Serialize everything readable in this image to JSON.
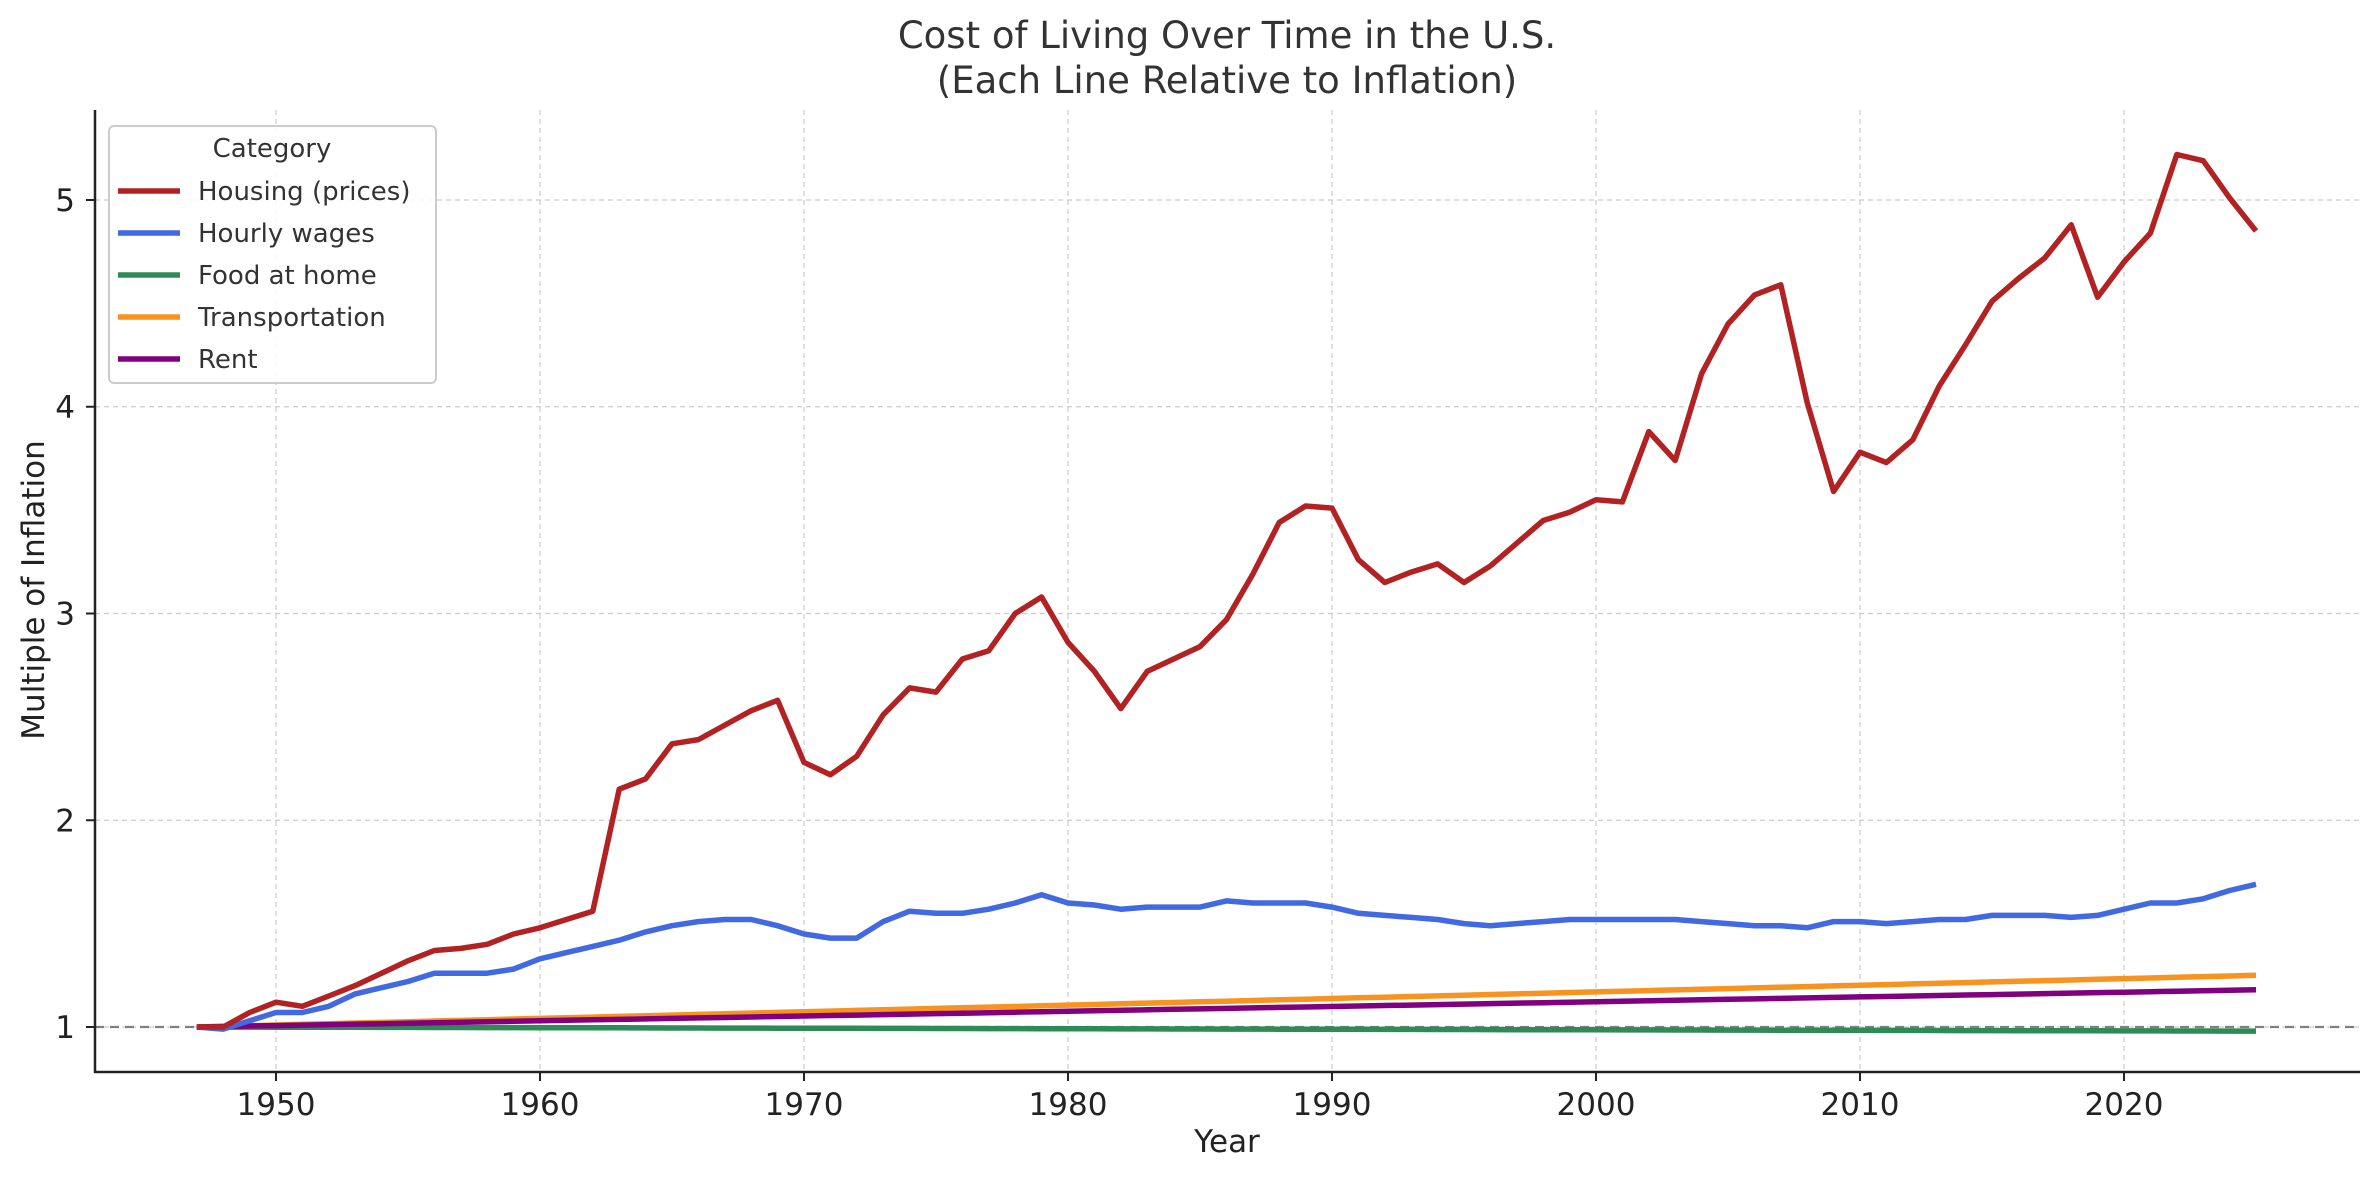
{
  "chart_data": {
    "type": "line",
    "title": "Cost of Living Over Time in the U.S.",
    "subtitle": "(Each Line Relative to Inflation)",
    "xlabel": "Year",
    "ylabel": "Multiple of Inflation",
    "xlim": [
      1943,
      2029
    ],
    "ylim": [
      0.78,
      5.43
    ],
    "xticks": [
      1950,
      1960,
      1970,
      1980,
      1990,
      2000,
      2010,
      2020
    ],
    "yticks": [
      1,
      2,
      3,
      4,
      5
    ],
    "grid": true,
    "reference_line": {
      "y": 1,
      "style": "dashed",
      "color": "#808080"
    },
    "legend": {
      "title": "Category",
      "placement": "top-left"
    },
    "x": [
      1947,
      1948,
      1949,
      1950,
      1951,
      1952,
      1953,
      1954,
      1955,
      1956,
      1957,
      1958,
      1959,
      1960,
      1961,
      1962,
      1963,
      1964,
      1965,
      1966,
      1967,
      1968,
      1969,
      1970,
      1971,
      1972,
      1973,
      1974,
      1975,
      1976,
      1977,
      1978,
      1979,
      1980,
      1981,
      1982,
      1983,
      1984,
      1985,
      1986,
      1987,
      1988,
      1989,
      1990,
      1991,
      1992,
      1993,
      1994,
      1995,
      1996,
      1997,
      1998,
      1999,
      2000,
      2001,
      2002,
      2003,
      2004,
      2005,
      2006,
      2007,
      2008,
      2009,
      2010,
      2011,
      2012,
      2013,
      2014,
      2015,
      2016,
      2017,
      2018,
      2019,
      2020,
      2021,
      2022,
      2023,
      2024,
      2025
    ],
    "series": [
      {
        "name": "Housing (prices)",
        "color": "#b22222",
        "values": [
          1.0,
          1.0,
          1.07,
          1.12,
          1.1,
          1.15,
          1.2,
          1.26,
          1.32,
          1.37,
          1.38,
          1.4,
          1.45,
          1.48,
          1.52,
          1.56,
          2.15,
          2.2,
          2.37,
          2.39,
          2.46,
          2.53,
          2.58,
          2.28,
          2.22,
          2.31,
          2.51,
          2.64,
          2.62,
          2.78,
          2.82,
          3.0,
          3.08,
          2.86,
          2.72,
          2.54,
          2.72,
          2.78,
          2.84,
          2.97,
          3.19,
          3.44,
          3.52,
          3.51,
          3.26,
          3.15,
          3.2,
          3.24,
          3.15,
          3.23,
          3.34,
          3.45,
          3.49,
          3.55,
          3.54,
          3.88,
          3.74,
          4.16,
          4.4,
          4.54,
          4.59,
          4.02,
          3.59,
          3.78,
          3.73,
          3.84,
          4.1,
          4.3,
          4.51,
          4.62,
          4.72,
          4.88,
          4.53,
          4.7,
          4.84,
          5.22,
          5.19,
          5.01,
          4.85
        ]
      },
      {
        "name": "Hourly wages",
        "color": "#4169e1",
        "values": [
          1.0,
          0.99,
          1.03,
          1.07,
          1.07,
          1.1,
          1.16,
          1.19,
          1.22,
          1.26,
          1.26,
          1.26,
          1.28,
          1.33,
          1.36,
          1.39,
          1.42,
          1.46,
          1.49,
          1.51,
          1.52,
          1.52,
          1.49,
          1.45,
          1.43,
          1.43,
          1.51,
          1.56,
          1.55,
          1.55,
          1.57,
          1.6,
          1.64,
          1.6,
          1.59,
          1.57,
          1.58,
          1.58,
          1.58,
          1.61,
          1.6,
          1.6,
          1.6,
          1.58,
          1.55,
          1.54,
          1.53,
          1.52,
          1.5,
          1.49,
          1.5,
          1.51,
          1.52,
          1.52,
          1.52,
          1.52,
          1.52,
          1.51,
          1.5,
          1.49,
          1.49,
          1.48,
          1.51,
          1.51,
          1.5,
          1.51,
          1.52,
          1.52,
          1.54,
          1.54,
          1.54,
          1.53,
          1.54,
          1.57,
          1.6,
          1.6,
          1.62,
          1.66,
          1.69
        ]
      },
      {
        "name": "Food at home",
        "color": "#2e8b57",
        "start": 1.0,
        "end": 0.98
      },
      {
        "name": "Transportation",
        "color": "#f7931e",
        "start": 1.0,
        "end": 1.25
      },
      {
        "name": "Rent",
        "color": "#800080",
        "start": 1.0,
        "end": 1.18
      }
    ]
  }
}
